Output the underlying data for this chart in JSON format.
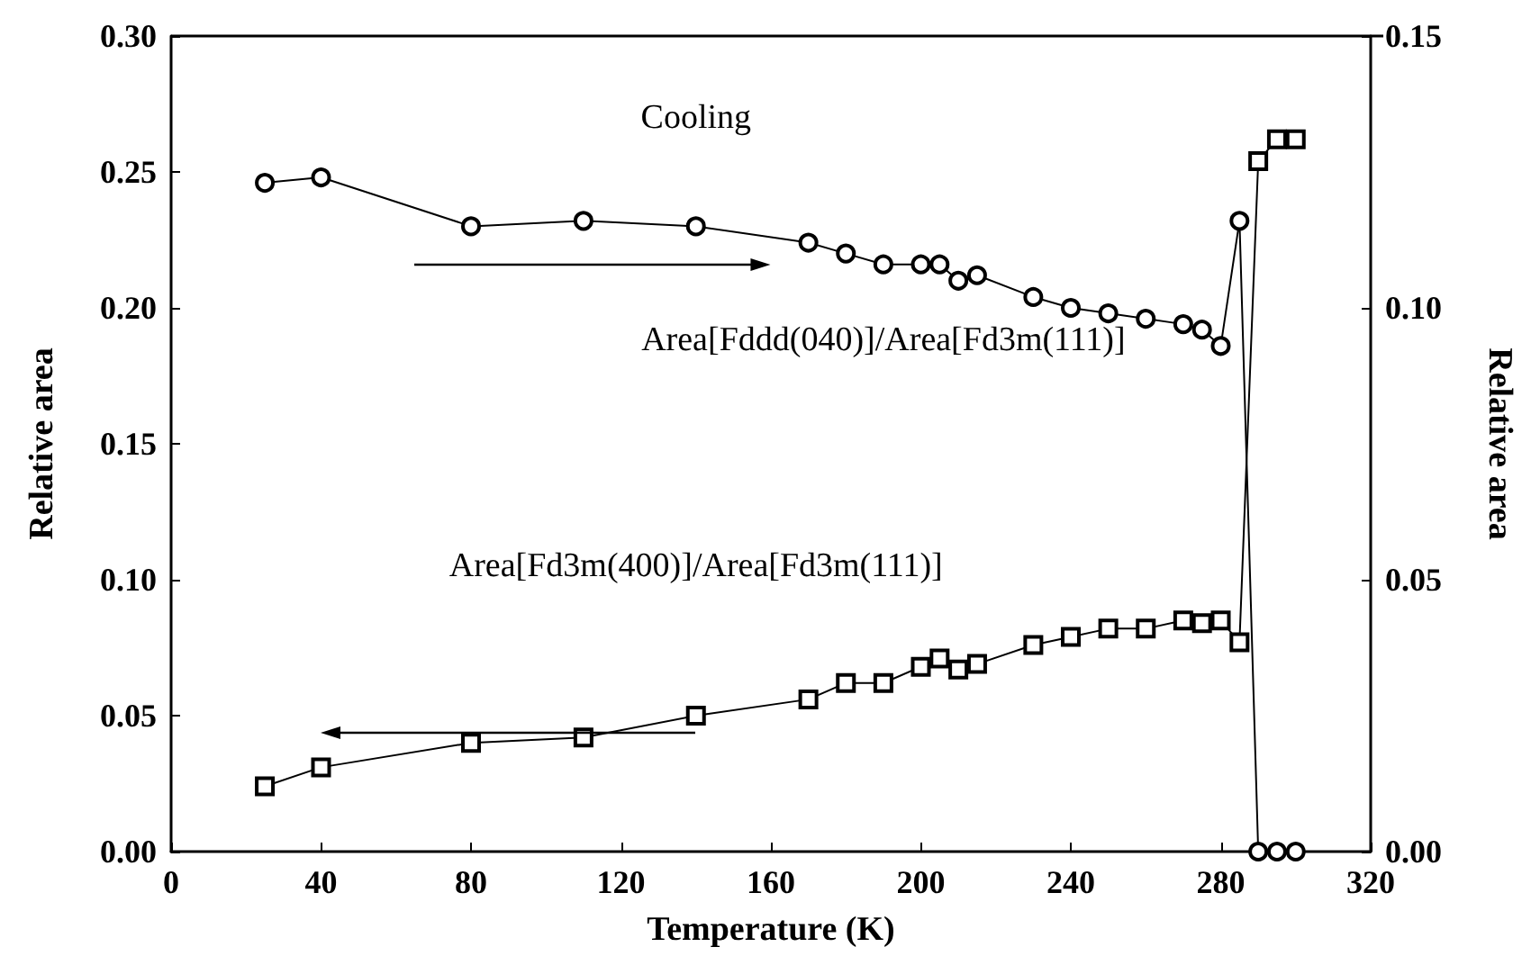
{
  "chart_data": {
    "type": "line",
    "xlabel": "Temperature (K)",
    "ylabel": "Relative area",
    "y2label": "Relative area",
    "xlim": [
      0,
      320
    ],
    "xticks": [
      0,
      40,
      80,
      120,
      160,
      200,
      240,
      280,
      320
    ],
    "ylim": [
      0,
      0.3
    ],
    "yticks": [
      {
        "value": 0,
        "label": "0.00"
      },
      {
        "value": 0.05,
        "label": "0.05"
      },
      {
        "value": 0.1,
        "label": "0.10"
      },
      {
        "value": 0.15,
        "label": "0.15"
      },
      {
        "value": 0.2,
        "label": "0.20"
      },
      {
        "value": 0.25,
        "label": "0.25"
      },
      {
        "value": 0.3,
        "label": "0.30"
      }
    ],
    "y2lim": [
      0,
      0.15
    ],
    "y2ticks": [
      {
        "value": 0,
        "label": "0.00"
      },
      {
        "value": 0.05,
        "label": "0.05"
      },
      {
        "value": 0.1,
        "label": "0.10"
      },
      {
        "value": 0.15,
        "label": "0.15"
      }
    ],
    "x": [
      25,
      40,
      80,
      110,
      140,
      170,
      180,
      190,
      200,
      205,
      210,
      215,
      230,
      240,
      250,
      260,
      270,
      275,
      280,
      285,
      290,
      295,
      300
    ],
    "series": [
      {
        "name": "Area[Fddd(040)]/Area[Fd3m(111)]",
        "color": "#000000",
        "marker": "circle",
        "axis": "y2",
        "values": [
          0.123,
          0.124,
          0.115,
          0.116,
          0.115,
          0.112,
          0.11,
          0.108,
          0.108,
          0.108,
          0.105,
          0.106,
          0.102,
          0.1,
          0.099,
          0.098,
          0.097,
          0.096,
          0.093,
          0.116,
          0,
          0,
          0
        ]
      },
      {
        "name": "Area[Fd3m(400)]/Area[Fd3m(111)]",
        "color": "#000000",
        "marker": "square",
        "axis": "y",
        "values": [
          0.024,
          0.031,
          0.04,
          0.042,
          0.05,
          0.056,
          0.062,
          0.062,
          0.068,
          0.071,
          0.067,
          0.069,
          0.076,
          0.079,
          0.082,
          0.082,
          0.085,
          0.084,
          0.085,
          0.077,
          0.254,
          0.262,
          0.262
        ]
      }
    ],
    "annotations": [
      "Cooling"
    ],
    "grid": false,
    "legend": false,
    "line_style": "solid"
  }
}
